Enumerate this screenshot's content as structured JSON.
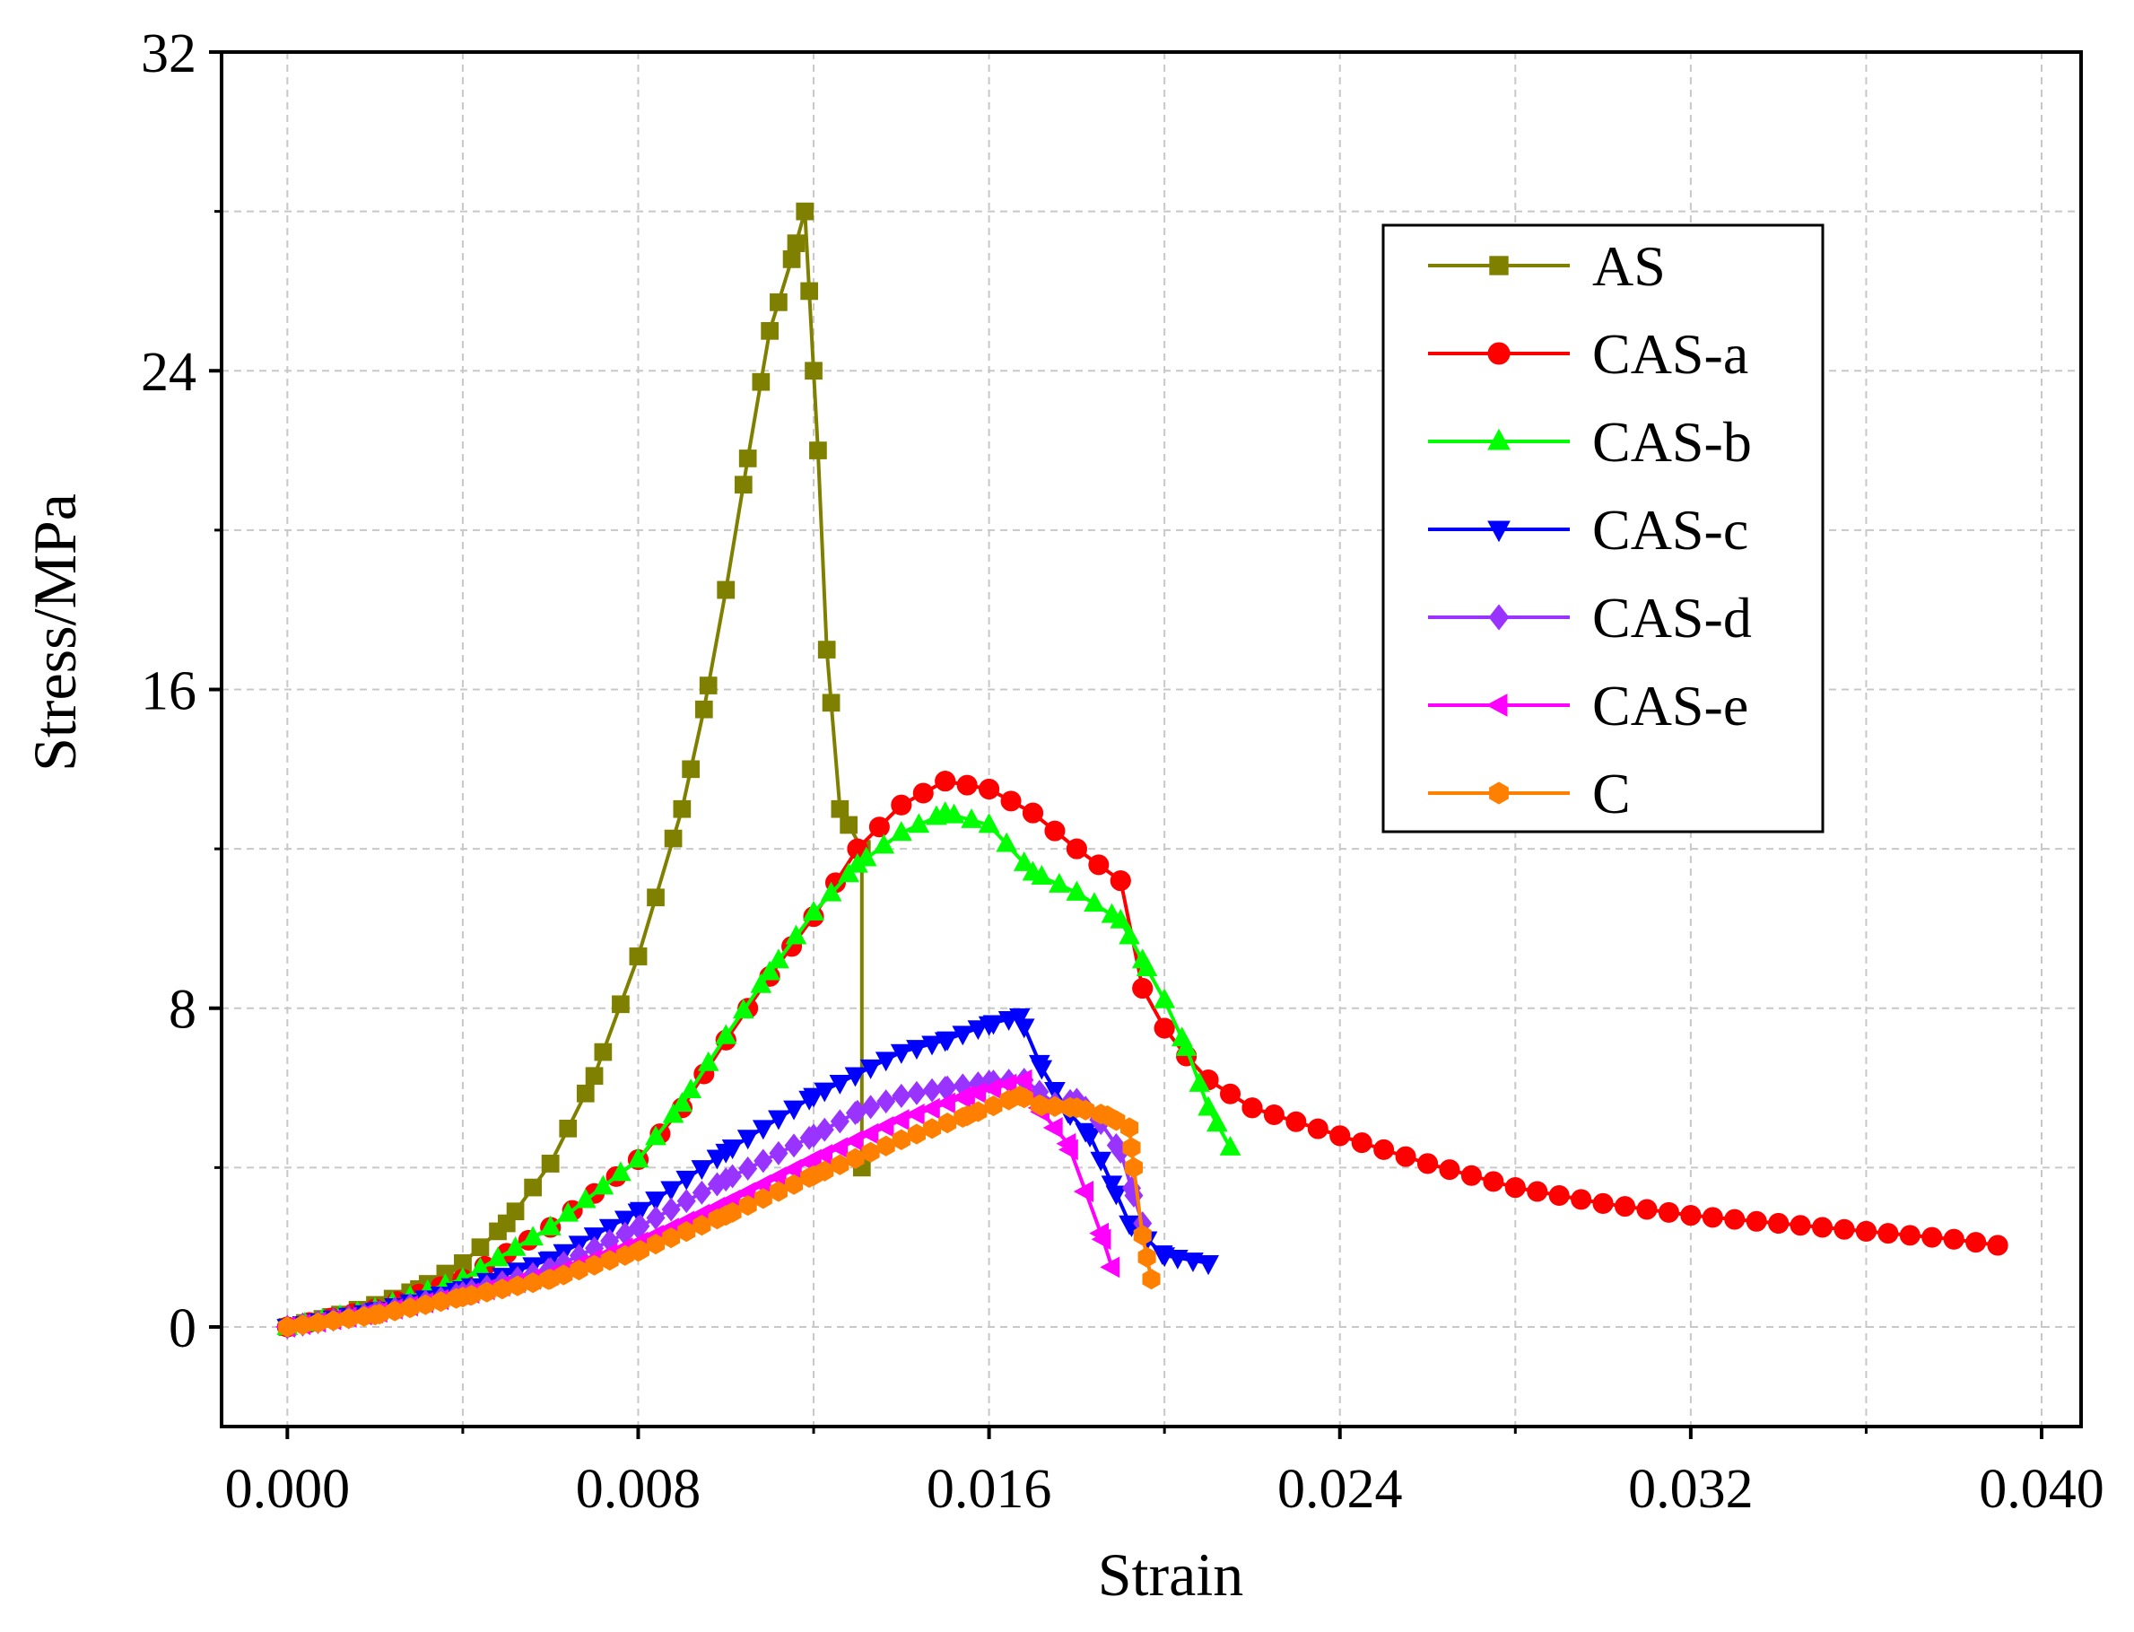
{
  "chart_data": {
    "type": "line",
    "title": "",
    "xlabel": "Strain",
    "ylabel": "Stress/MPa",
    "xlim": [
      -0.0015,
      0.0409
    ],
    "ylim": [
      -2.5,
      32
    ],
    "xticks": [
      0.0,
      0.008,
      0.016,
      0.024,
      0.032,
      0.04
    ],
    "xtick_labels": [
      "0.000",
      "0.008",
      "0.016",
      "0.024",
      "0.032",
      "0.040"
    ],
    "yticks": [
      0,
      8,
      16,
      24,
      32
    ],
    "ytick_labels": [
      "0",
      "8",
      "16",
      "24",
      "32"
    ],
    "grid": true,
    "legend_position": "top-right",
    "series": [
      {
        "name": "AS",
        "color": "#808000",
        "marker": "square",
        "marker_step": 0.0004,
        "points": [
          [
            0,
            0
          ],
          [
            0.001,
            0.25
          ],
          [
            0.002,
            0.55
          ],
          [
            0.003,
            0.95
          ],
          [
            0.004,
            1.6
          ],
          [
            0.005,
            2.6
          ],
          [
            0.006,
            4.1
          ],
          [
            0.007,
            6.3
          ],
          [
            0.008,
            9.3
          ],
          [
            0.009,
            13.0
          ],
          [
            0.0095,
            15.5
          ],
          [
            0.01,
            18.5
          ],
          [
            0.0105,
            21.8
          ],
          [
            0.011,
            25.0
          ],
          [
            0.0115,
            26.8
          ],
          [
            0.0118,
            28.0
          ],
          [
            0.0119,
            26.0
          ],
          [
            0.0121,
            22.0
          ],
          [
            0.0123,
            17.0
          ],
          [
            0.0126,
            13.0
          ],
          [
            0.0131,
            12.0
          ],
          [
            0.0131,
            4.0
          ]
        ]
      },
      {
        "name": "CAS-a",
        "color": "#ff0000",
        "marker": "circle",
        "marker_step": 0.0005,
        "points": [
          [
            0,
            0
          ],
          [
            0.002,
            0.45
          ],
          [
            0.004,
            1.2
          ],
          [
            0.006,
            2.5
          ],
          [
            0.008,
            4.2
          ],
          [
            0.009,
            5.5
          ],
          [
            0.01,
            7.2
          ],
          [
            0.011,
            8.8
          ],
          [
            0.012,
            10.3
          ],
          [
            0.013,
            12.0
          ],
          [
            0.014,
            13.1
          ],
          [
            0.015,
            13.7
          ],
          [
            0.016,
            13.5
          ],
          [
            0.017,
            12.9
          ],
          [
            0.018,
            12.0
          ],
          [
            0.019,
            11.2
          ],
          [
            0.0195,
            8.5
          ],
          [
            0.02,
            7.5
          ],
          [
            0.0205,
            6.8
          ],
          [
            0.021,
            6.2
          ],
          [
            0.022,
            5.5
          ],
          [
            0.024,
            4.8
          ],
          [
            0.026,
            4.1
          ],
          [
            0.028,
            3.5
          ],
          [
            0.03,
            3.1
          ],
          [
            0.032,
            2.8
          ],
          [
            0.034,
            2.6
          ],
          [
            0.036,
            2.4
          ],
          [
            0.038,
            2.2
          ],
          [
            0.039,
            2.05
          ]
        ]
      },
      {
        "name": "CAS-b",
        "color": "#00ff00",
        "marker": "triangle-up",
        "marker_step": 0.0004,
        "points": [
          [
            0,
            0
          ],
          [
            0.002,
            0.45
          ],
          [
            0.004,
            1.2
          ],
          [
            0.006,
            2.5
          ],
          [
            0.008,
            4.2
          ],
          [
            0.009,
            5.6
          ],
          [
            0.01,
            7.3
          ],
          [
            0.011,
            8.9
          ],
          [
            0.012,
            10.4
          ],
          [
            0.013,
            11.6
          ],
          [
            0.014,
            12.4
          ],
          [
            0.015,
            12.9
          ],
          [
            0.016,
            12.6
          ],
          [
            0.017,
            11.4
          ],
          [
            0.018,
            10.9
          ],
          [
            0.019,
            10.2
          ],
          [
            0.0195,
            9.2
          ],
          [
            0.02,
            8.2
          ],
          [
            0.0205,
            7.0
          ],
          [
            0.021,
            5.5
          ],
          [
            0.0215,
            4.5
          ]
        ]
      },
      {
        "name": "CAS-c",
        "color": "#0000ff",
        "marker": "triangle-down",
        "marker_step": 0.00035,
        "points": [
          [
            0,
            0
          ],
          [
            0.002,
            0.4
          ],
          [
            0.004,
            0.95
          ],
          [
            0.006,
            1.7
          ],
          [
            0.008,
            2.9
          ],
          [
            0.01,
            4.4
          ],
          [
            0.012,
            5.8
          ],
          [
            0.014,
            6.9
          ],
          [
            0.015,
            7.2
          ],
          [
            0.016,
            7.6
          ],
          [
            0.0167,
            7.8
          ],
          [
            0.0172,
            6.5
          ],
          [
            0.0178,
            5.4
          ],
          [
            0.0183,
            4.8
          ],
          [
            0.0188,
            3.6
          ],
          [
            0.0192,
            2.6
          ],
          [
            0.02,
            1.8
          ],
          [
            0.021,
            1.6
          ]
        ]
      },
      {
        "name": "CAS-d",
        "color": "#9933ff",
        "marker": "diamond",
        "marker_step": 0.00035,
        "points": [
          [
            0,
            0
          ],
          [
            0.002,
            0.35
          ],
          [
            0.004,
            0.85
          ],
          [
            0.006,
            1.45
          ],
          [
            0.008,
            2.5
          ],
          [
            0.01,
            3.7
          ],
          [
            0.012,
            4.8
          ],
          [
            0.013,
            5.4
          ],
          [
            0.014,
            5.8
          ],
          [
            0.015,
            6.0
          ],
          [
            0.016,
            6.15
          ],
          [
            0.0168,
            6.2
          ],
          [
            0.0175,
            5.6
          ],
          [
            0.018,
            5.7
          ],
          [
            0.0185,
            5.2
          ],
          [
            0.019,
            4.4
          ],
          [
            0.0193,
            3.3
          ],
          [
            0.0195,
            2.6
          ]
        ]
      },
      {
        "name": "CAS-e",
        "color": "#ff00ff",
        "marker": "triangle-left",
        "marker_step": 0.00035,
        "points": [
          [
            0,
            0
          ],
          [
            0.002,
            0.35
          ],
          [
            0.004,
            0.8
          ],
          [
            0.006,
            1.3
          ],
          [
            0.008,
            2.1
          ],
          [
            0.01,
            3.1
          ],
          [
            0.012,
            4.2
          ],
          [
            0.014,
            5.2
          ],
          [
            0.0155,
            5.8
          ],
          [
            0.0168,
            6.2
          ],
          [
            0.0172,
            5.4
          ],
          [
            0.0178,
            4.6
          ],
          [
            0.0182,
            3.4
          ],
          [
            0.0186,
            2.2
          ],
          [
            0.0188,
            1.5
          ]
        ]
      },
      {
        "name": "C",
        "color": "#ff8000",
        "marker": "hexagon",
        "marker_step": 0.00035,
        "points": [
          [
            0,
            0
          ],
          [
            0.002,
            0.3
          ],
          [
            0.004,
            0.75
          ],
          [
            0.006,
            1.2
          ],
          [
            0.008,
            1.9
          ],
          [
            0.01,
            2.8
          ],
          [
            0.012,
            3.8
          ],
          [
            0.014,
            4.7
          ],
          [
            0.0155,
            5.3
          ],
          [
            0.0167,
            5.8
          ],
          [
            0.0172,
            5.55
          ],
          [
            0.018,
            5.5
          ],
          [
            0.0187,
            5.3
          ],
          [
            0.0192,
            5.0
          ],
          [
            0.0193,
            4.0
          ],
          [
            0.0195,
            2.3
          ],
          [
            0.0197,
            1.2
          ]
        ]
      }
    ]
  }
}
